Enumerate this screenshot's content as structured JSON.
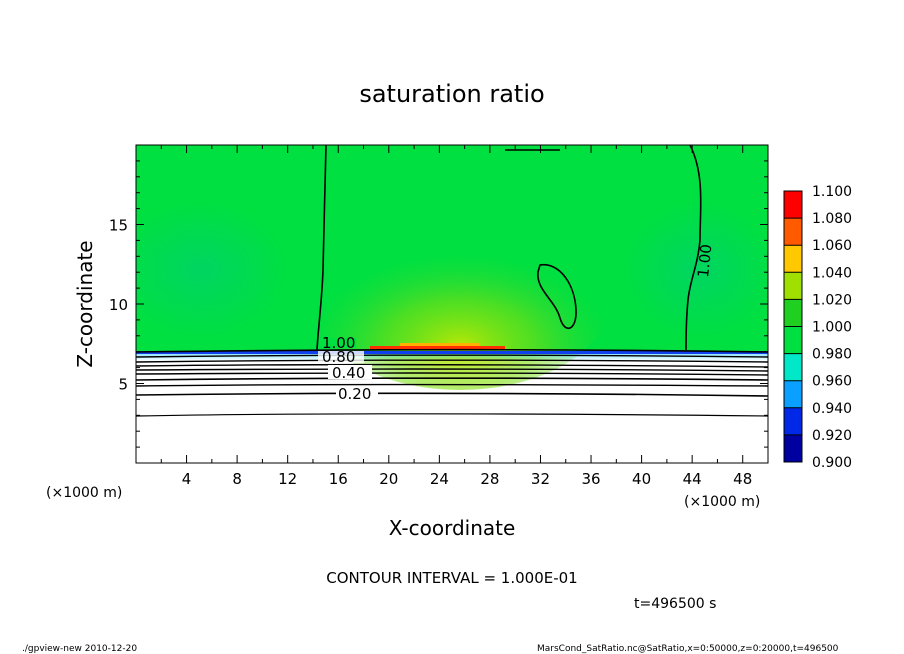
{
  "chart_data": {
    "type": "heatmap",
    "title": "saturation ratio",
    "xlabel": "X-coordinate",
    "ylabel": "Z-coordinate",
    "x_unit_left": "(×1000 m)",
    "x_unit_right": "(×1000 m)",
    "xlim": [
      0,
      50
    ],
    "ylim": [
      0,
      20
    ],
    "x_ticks": [
      4,
      8,
      12,
      16,
      20,
      24,
      28,
      32,
      36,
      40,
      44,
      48
    ],
    "y_ticks": [
      5,
      10,
      15
    ],
    "colorbar": {
      "levels": [
        "0.900",
        "0.920",
        "0.940",
        "0.960",
        "0.980",
        "1.000",
        "1.020",
        "1.040",
        "1.060",
        "1.080",
        "1.100"
      ],
      "colors": [
        "#6a00b0",
        "#0000a0",
        "#0028e6",
        "#0aa0ff",
        "#00e8c8",
        "#00e040",
        "#20d020",
        "#a0e000",
        "#ffc800",
        "#ff5a00",
        "#ff0000",
        "#ff8080"
      ]
    },
    "contour_labels": [
      "1.00",
      "0.80",
      "0.40",
      "0.20",
      "1.00"
    ],
    "contour_interval": "CONTOUR INTERVAL = 1.000E-01",
    "time_label": "t=496500 s"
  },
  "footer": {
    "left": "./gpview-new   2010-12-20",
    "right": "MarsCond_SatRatio.nc@SatRatio,x=0:50000,z=0:20000,t=496500"
  }
}
